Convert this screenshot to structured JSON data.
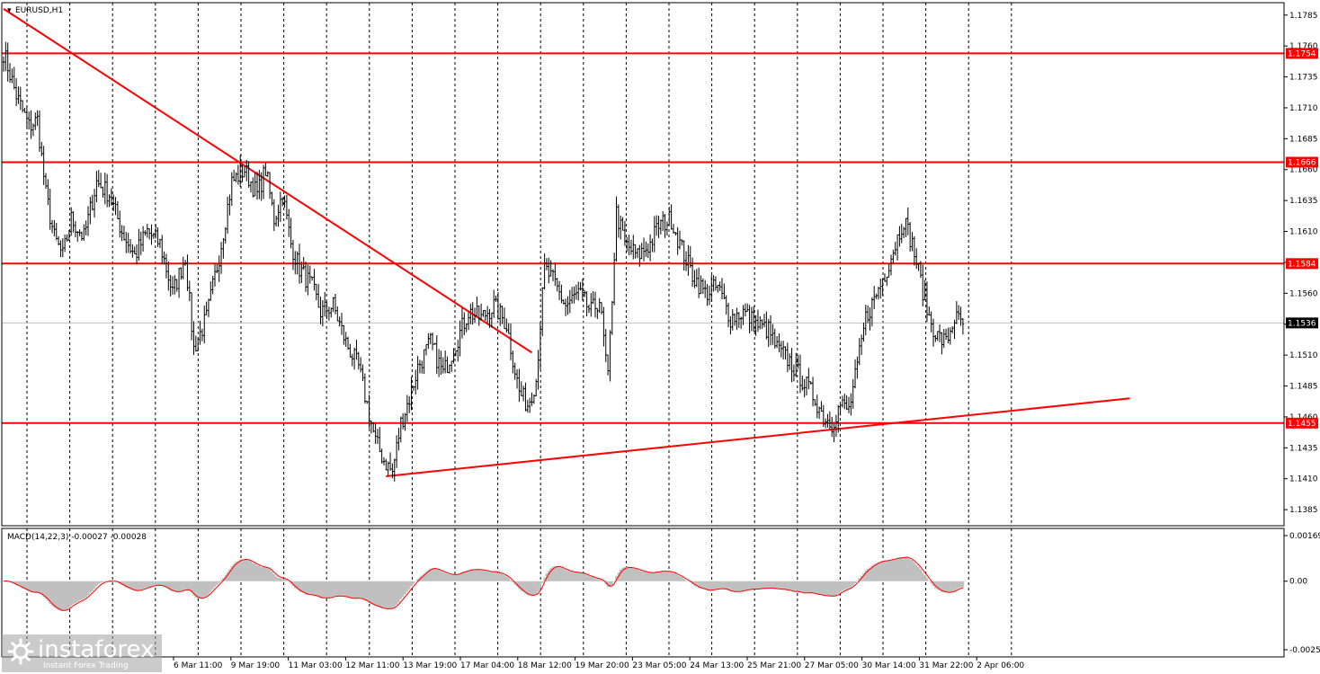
{
  "header": {
    "symbol_label": "EURUSD,H1",
    "indicator_label": "MACD(14,22,3) -0.00027 -0.00028"
  },
  "watermark": {
    "brand": "instaforex",
    "tagline": "Instant Forex Trading"
  },
  "colors": {
    "background": "#ffffff",
    "candle": "#000000",
    "level_line": "#ff0000",
    "trend_line": "#ff0000",
    "grid": "#000000",
    "histogram": "#c0c0c0",
    "signal_line": "#ff0000",
    "current_price_box": "#000000"
  },
  "chart_data": {
    "type": "candlestick",
    "symbol": "EURUSD",
    "timeframe": "H1",
    "price_axis": {
      "range": [
        1.1372,
        1.1795
      ],
      "ticks": [
        "1.1785",
        "1.1760",
        "1.1735",
        "1.1710",
        "1.1685",
        "1.1660",
        "1.1635",
        "1.1610",
        "1.1585",
        "1.1560",
        "1.1535",
        "1.1510",
        "1.1485",
        "1.1460",
        "1.1435",
        "1.1410",
        "1.1385"
      ]
    },
    "time_axis": {
      "labels": [
        "6 Mar 11:00",
        "9 Mar 19:00",
        "11 Mar 03:00",
        "12 Mar 11:00",
        "13 Mar 19:00",
        "17 Mar 04:00",
        "18 Mar 12:00",
        "19 Mar 20:00",
        "23 Mar 05:00",
        "24 Mar 13:00",
        "25 Mar 21:00",
        "27 Mar 05:00",
        "30 Mar 14:00",
        "31 Mar 22:00",
        "2 Apr 06:00"
      ],
      "grid_lines": 24
    },
    "levels": [
      {
        "value": 1.1754,
        "label": "1.1754"
      },
      {
        "value": 1.1666,
        "label": "1.1666"
      },
      {
        "value": 1.1584,
        "label": "1.1584"
      },
      {
        "value": 1.1455,
        "label": "1.1455"
      }
    ],
    "current_price": {
      "value": 1.1536,
      "label": "1.1536"
    },
    "trendlines": [
      {
        "name": "descending",
        "from": {
          "bar": 0,
          "price": 1.179
        },
        "to": {
          "bar": 250,
          "price": 1.1512
        }
      },
      {
        "name": "ascending",
        "from": {
          "bar": 181,
          "price": 1.1412
        },
        "to": {
          "bar": 533,
          "price": 1.1475
        }
      }
    ],
    "price_path": [
      [
        0,
        1.1755
      ],
      [
        6,
        1.172
      ],
      [
        12,
        1.1695
      ],
      [
        16,
        1.17
      ],
      [
        20,
        1.164
      ],
      [
        24,
        1.1605
      ],
      [
        28,
        1.159
      ],
      [
        32,
        1.162
      ],
      [
        38,
        1.1605
      ],
      [
        44,
        1.165
      ],
      [
        50,
        1.164
      ],
      [
        56,
        1.161
      ],
      [
        62,
        1.159
      ],
      [
        68,
        1.161
      ],
      [
        74,
        1.16
      ],
      [
        80,
        1.156
      ],
      [
        86,
        1.159
      ],
      [
        90,
        1.1515
      ],
      [
        96,
        1.154
      ],
      [
        102,
        1.159
      ],
      [
        108,
        1.165
      ],
      [
        114,
        1.166
      ],
      [
        120,
        1.164
      ],
      [
        124,
        1.166
      ],
      [
        128,
        1.162
      ],
      [
        132,
        1.164
      ],
      [
        136,
        1.16
      ],
      [
        140,
        1.158
      ],
      [
        146,
        1.1565
      ],
      [
        150,
        1.1545
      ],
      [
        156,
        1.155
      ],
      [
        162,
        1.152
      ],
      [
        168,
        1.15
      ],
      [
        172,
        1.147
      ],
      [
        176,
        1.144
      ],
      [
        180,
        1.1425
      ],
      [
        184,
        1.1415
      ],
      [
        188,
        1.1455
      ],
      [
        192,
        1.1475
      ],
      [
        196,
        1.15
      ],
      [
        202,
        1.152
      ],
      [
        208,
        1.1495
      ],
      [
        214,
        1.152
      ],
      [
        220,
        1.1545
      ],
      [
        226,
        1.154
      ],
      [
        232,
        1.155
      ],
      [
        238,
        1.1535
      ],
      [
        244,
        1.148
      ],
      [
        248,
        1.147
      ],
      [
        252,
        1.149
      ],
      [
        256,
        1.158
      ],
      [
        260,
        1.157
      ],
      [
        266,
        1.155
      ],
      [
        272,
        1.156
      ],
      [
        278,
        1.1545
      ],
      [
        282,
        1.1555
      ],
      [
        286,
        1.149
      ],
      [
        290,
        1.1625
      ],
      [
        294,
        1.16
      ],
      [
        300,
        1.159
      ],
      [
        306,
        1.16
      ],
      [
        310,
        1.1615
      ],
      [
        316,
        1.162
      ],
      [
        320,
        1.16
      ],
      [
        326,
        1.1575
      ],
      [
        332,
        1.156
      ],
      [
        338,
        1.1565
      ],
      [
        344,
        1.154
      ],
      [
        350,
        1.1545
      ],
      [
        356,
        1.1535
      ],
      [
        362,
        1.153
      ],
      [
        366,
        1.1515
      ],
      [
        372,
        1.1505
      ],
      [
        378,
        1.149
      ],
      [
        384,
        1.1475
      ],
      [
        388,
        1.146
      ],
      [
        392,
        1.1455
      ],
      [
        396,
        1.147
      ],
      [
        400,
        1.1465
      ],
      [
        404,
        1.15
      ],
      [
        408,
        1.154
      ],
      [
        412,
        1.1555
      ],
      [
        418,
        1.158
      ],
      [
        422,
        1.16
      ],
      [
        426,
        1.162
      ],
      [
        430,
        1.16
      ],
      [
        434,
        1.157
      ],
      [
        438,
        1.154
      ],
      [
        442,
        1.1525
      ],
      [
        446,
        1.152
      ],
      [
        450,
        1.154
      ],
      [
        454,
        1.1535
      ]
    ],
    "macd": {
      "params": "14,22,3",
      "main": -0.00027,
      "signal": -0.00028,
      "axis_ticks": [
        "0.00169",
        "0.00",
        "-0.00254"
      ],
      "range": [
        -0.00254,
        0.00169
      ]
    }
  }
}
